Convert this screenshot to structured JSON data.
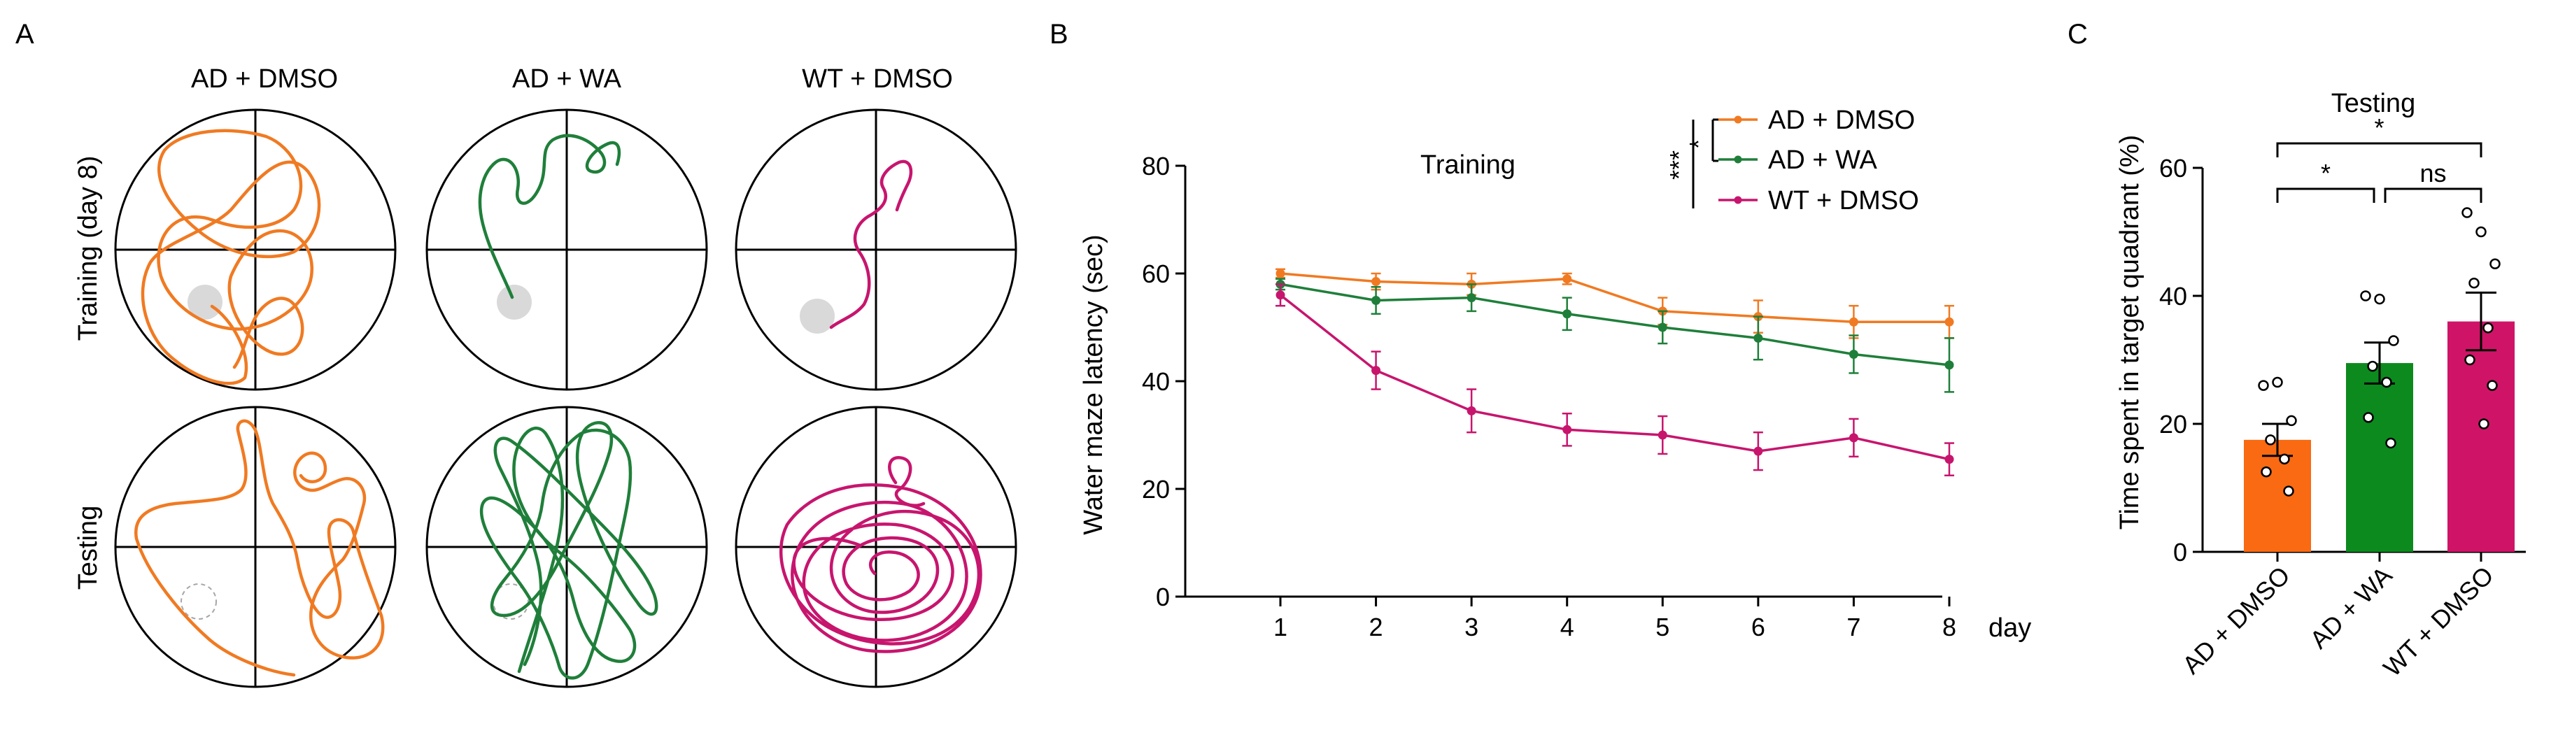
{
  "colors": {
    "ad_dmso": "#f07a22",
    "ad_wa": "#1f7f3a",
    "wt_dmso": "#c7156e",
    "platform": "#d9d9d9"
  },
  "panel_a": {
    "label": "A",
    "column_titles": [
      "AD + DMSO",
      "AD + WA",
      "WT + DMSO"
    ],
    "row_titles": [
      "Training (day 8)",
      "Testing"
    ]
  },
  "chart_data": [
    {
      "panel": "B",
      "type": "line",
      "title": "Training",
      "xlabel": "",
      "x_unit": "day",
      "ylabel": "Water maze latency (sec)",
      "x": [
        1,
        2,
        3,
        4,
        5,
        6,
        7,
        8
      ],
      "xlim": [
        0,
        8
      ],
      "ylim": [
        0,
        80
      ],
      "yticks": [
        0,
        20,
        40,
        60,
        80
      ],
      "legend": "top-right",
      "series": [
        {
          "name": "AD + DMSO",
          "color": "#f07a22",
          "values": [
            60,
            58.5,
            58,
            59,
            53,
            52,
            51,
            51
          ],
          "errors": [
            0.8,
            1.5,
            2,
            1,
            2.5,
            3,
            3,
            3
          ]
        },
        {
          "name": "AD + WA",
          "color": "#1f7f3a",
          "values": [
            58,
            55,
            55.5,
            52.5,
            50,
            48,
            45,
            43
          ],
          "errors": [
            1,
            2.5,
            2.5,
            3,
            3,
            4,
            3.5,
            5
          ]
        },
        {
          "name": "WT + DMSO",
          "color": "#c7156e",
          "values": [
            56,
            42,
            34.5,
            31,
            30,
            27,
            29.5,
            25.5
          ],
          "errors": [
            2,
            3.5,
            4,
            3,
            3.5,
            3.5,
            3.5,
            3
          ]
        }
      ],
      "significance": [
        {
          "label": "***",
          "pair": [
            "AD + DMSO",
            "WT + DMSO"
          ]
        },
        {
          "label": "*",
          "pair": [
            "AD + DMSO",
            "AD + WA"
          ]
        }
      ]
    },
    {
      "panel": "C",
      "type": "bar",
      "title": "Testing",
      "xlabel": "",
      "ylabel": "Time spent in target quadrant (%)",
      "categories": [
        "AD + DMSO",
        "AD + WA",
        "WT + DMSO"
      ],
      "values": [
        17.5,
        29.5,
        36
      ],
      "errors": [
        2.5,
        3.2,
        4.5
      ],
      "colors": [
        "#f96a12",
        "#0c8a1e",
        "#cf1467"
      ],
      "points": [
        [
          26,
          26.5,
          20.5,
          17.5,
          14.5,
          12.5,
          9.5
        ],
        [
          40,
          39.5,
          33,
          29,
          26.5,
          21,
          17
        ],
        [
          53,
          50,
          45,
          42,
          35,
          30,
          26,
          20
        ]
      ],
      "ylim": [
        0,
        60
      ],
      "yticks": [
        0,
        20,
        40,
        60
      ],
      "significance": [
        {
          "label": "*",
          "from": 0,
          "to": 1
        },
        {
          "label": "ns",
          "from": 1,
          "to": 2
        },
        {
          "label": "*",
          "from": 0,
          "to": 2
        }
      ]
    }
  ]
}
